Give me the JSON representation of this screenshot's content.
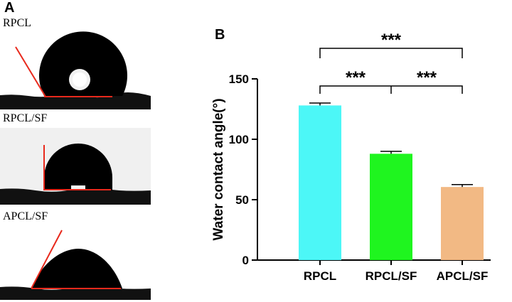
{
  "panel_a": {
    "letter": "A",
    "photos": [
      {
        "label": "RPCL"
      },
      {
        "label": "RPCL/SF"
      },
      {
        "label": "APCL/SF"
      }
    ]
  },
  "panel_b": {
    "letter": "B"
  },
  "colors": {
    "RPCL": "#4cf7f7",
    "RPCL/SF": "#1ff51f",
    "APCL/SF": "#f2b984",
    "contact_line": "#e8291c"
  },
  "chart_data": {
    "type": "bar",
    "categories": [
      "RPCL",
      "RPCL/SF",
      "APCL/SF"
    ],
    "values": [
      128,
      88,
      60.5
    ],
    "errors": [
      2,
      2,
      2
    ],
    "xlabel": "",
    "ylabel": "Water contact angle(°)",
    "ylim": [
      0,
      150
    ],
    "yticks": [
      "0",
      "50",
      "100",
      "150"
    ],
    "grid": false,
    "significance": [
      {
        "from": 0,
        "to": 2,
        "label": "***"
      },
      {
        "from": 0,
        "to": 1,
        "label": "***"
      },
      {
        "from": 1,
        "to": 2,
        "label": "***"
      }
    ]
  }
}
